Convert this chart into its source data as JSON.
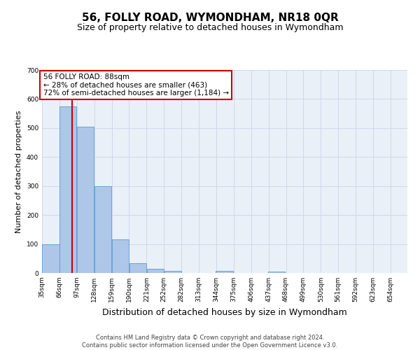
{
  "title": "56, FOLLY ROAD, WYMONDHAM, NR18 0QR",
  "subtitle": "Size of property relative to detached houses in Wymondham",
  "xlabel": "Distribution of detached houses by size in Wymondham",
  "ylabel": "Number of detached properties",
  "footer_line1": "Contains HM Land Registry data © Crown copyright and database right 2024.",
  "footer_line2": "Contains public sector information licensed under the Open Government Licence v3.0.",
  "bar_left_edges": [
    35,
    66,
    97,
    128,
    159,
    190,
    221,
    252,
    282,
    313,
    344,
    375,
    406,
    437,
    468,
    499,
    530,
    561,
    592,
    623
  ],
  "bar_heights": [
    100,
    575,
    505,
    300,
    115,
    35,
    15,
    8,
    0,
    0,
    8,
    0,
    0,
    5,
    0,
    0,
    0,
    0,
    0,
    0
  ],
  "bin_width": 31,
  "bar_color": "#aec6e8",
  "bar_edgecolor": "#5b9bd5",
  "vline_x": 88,
  "vline_color": "#cc0000",
  "ylim": [
    0,
    700
  ],
  "yticks": [
    0,
    100,
    200,
    300,
    400,
    500,
    600,
    700
  ],
  "annotation_text": "56 FOLLY ROAD: 88sqm\n← 28% of detached houses are smaller (463)\n72% of semi-detached houses are larger (1,184) →",
  "annotation_box_color": "#ffffff",
  "annotation_box_edgecolor": "#cc0000",
  "tick_labels": [
    "35sqm",
    "66sqm",
    "97sqm",
    "128sqm",
    "159sqm",
    "190sqm",
    "221sqm",
    "252sqm",
    "282sqm",
    "313sqm",
    "344sqm",
    "375sqm",
    "406sqm",
    "437sqm",
    "468sqm",
    "499sqm",
    "530sqm",
    "561sqm",
    "592sqm",
    "623sqm",
    "654sqm"
  ],
  "grid_color": "#d0d8e8",
  "background_color": "#eaf0f8",
  "title_fontsize": 11,
  "subtitle_fontsize": 9,
  "xlabel_fontsize": 9,
  "ylabel_fontsize": 8,
  "annotation_fontsize": 7.5,
  "footer_fontsize": 6,
  "tick_fontsize": 6.5
}
